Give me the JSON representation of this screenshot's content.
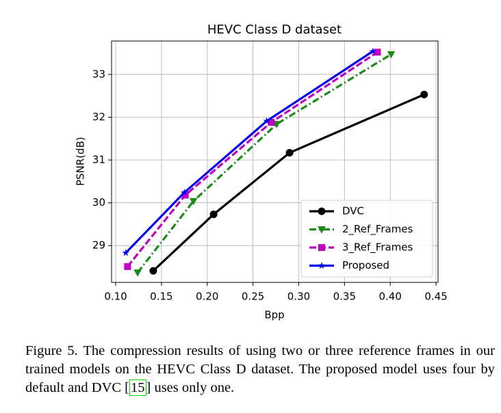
{
  "chart_data": {
    "type": "line",
    "title": "HEVC Class D dataset",
    "xlabel": "Bpp",
    "ylabel": "PSNR(dB)",
    "xlim": [
      0.0955,
      0.4522
    ],
    "ylim": [
      28.14,
      33.78
    ],
    "xticks": [
      {
        "value": 0.1,
        "label": "0.10"
      },
      {
        "value": 0.15,
        "label": "0.15"
      },
      {
        "value": 0.2,
        "label": "0.20"
      },
      {
        "value": 0.25,
        "label": "0.25"
      },
      {
        "value": 0.3,
        "label": "0.30"
      },
      {
        "value": 0.35,
        "label": "0.35"
      },
      {
        "value": 0.4,
        "label": "0.40"
      },
      {
        "value": 0.45,
        "label": "0.45"
      }
    ],
    "yticks": [
      29,
      30,
      31,
      32,
      33
    ],
    "grid": true,
    "legend": "lower right",
    "series": [
      {
        "name": "DVC",
        "color": "#000000",
        "linestyle": "solid",
        "marker": "o",
        "x": [
          0.141,
          0.207,
          0.29,
          0.437
        ],
        "values": [
          28.41,
          29.73,
          31.17,
          32.53
        ]
      },
      {
        "name": "2_Ref_Frames",
        "color": "#1a8a1a",
        "linestyle": "dashdot",
        "marker": "v",
        "x": [
          0.124,
          0.185,
          0.276,
          0.401
        ],
        "values": [
          28.37,
          30.04,
          31.84,
          33.47
        ]
      },
      {
        "name": "3_Ref_Frames",
        "color": "#c000c0",
        "linestyle": "dashed",
        "marker": "s",
        "x": [
          0.113,
          0.176,
          0.27,
          0.386
        ],
        "values": [
          28.51,
          30.18,
          31.88,
          33.52
        ]
      },
      {
        "name": "Proposed",
        "color": "#0000ee",
        "linestyle": "solid",
        "marker": "*",
        "x": [
          0.111,
          0.175,
          0.265,
          0.381
        ],
        "values": [
          28.83,
          30.24,
          31.91,
          33.54
        ]
      }
    ]
  },
  "caption": {
    "text": "Figure 5. The compression results of using two or three reference frames in our trained models on the HEVC Class D dataset. The proposed model uses four by default and DVC [",
    "citation": "15",
    "after": "] uses only one."
  }
}
